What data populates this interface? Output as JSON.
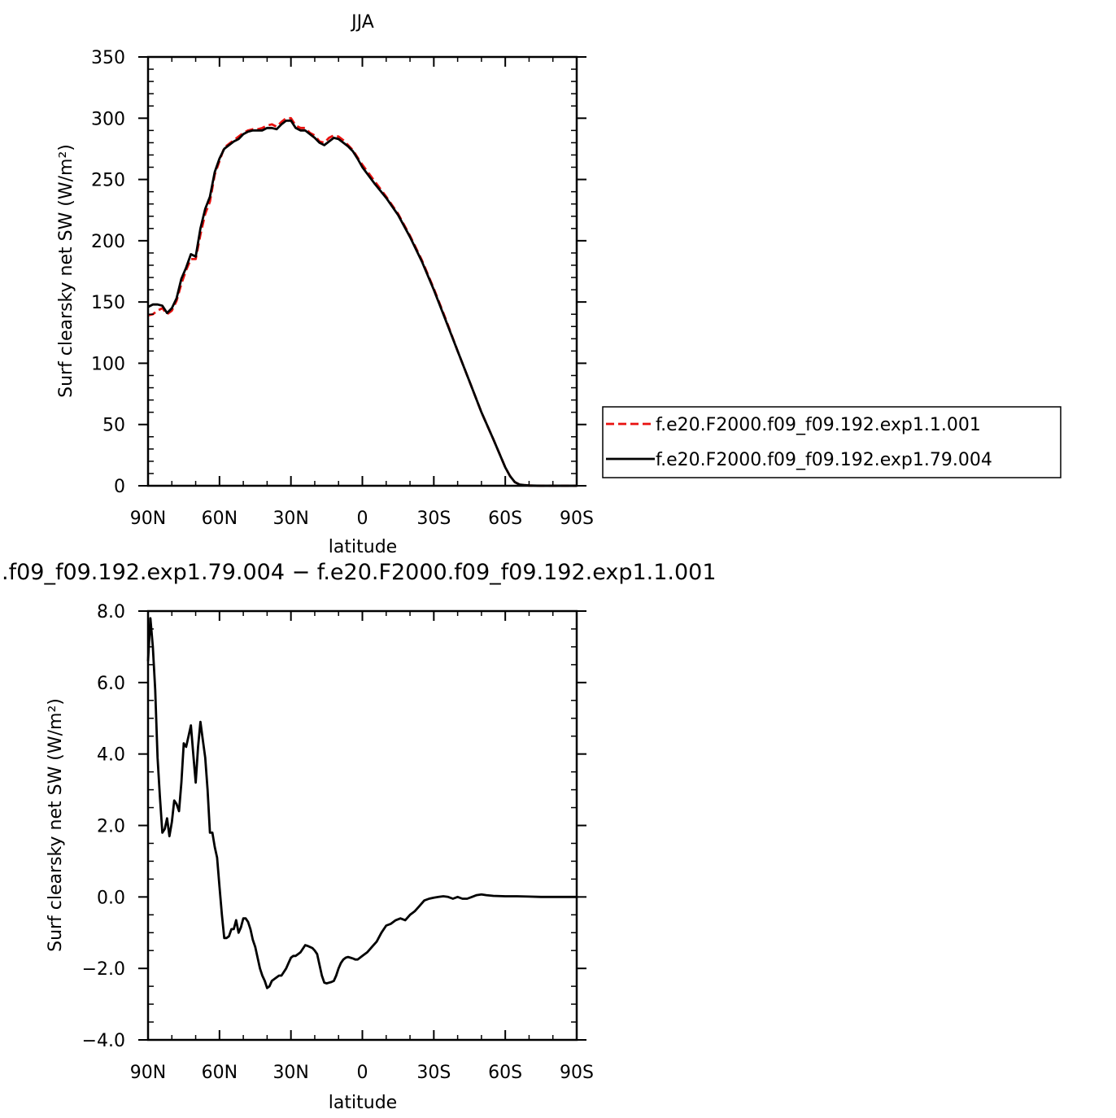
{
  "chart_data": [
    {
      "type": "line",
      "title": "JJA",
      "xlabel": "latitude",
      "ylabel": "Surf clearsky net SW (W/m²)",
      "xlim": [
        90,
        -90
      ],
      "ylim": [
        0,
        350
      ],
      "xticks": [
        90,
        60,
        30,
        0,
        -30,
        -60,
        -90
      ],
      "xtick_labels": [
        "90N",
        "60N",
        "30N",
        "0",
        "30S",
        "60S",
        "90S"
      ],
      "yticks": [
        0,
        50,
        100,
        150,
        200,
        250,
        300,
        350
      ],
      "ytick_labels": [
        "0",
        "50",
        "100",
        "150",
        "200",
        "250",
        "300",
        "350"
      ],
      "legend": "right",
      "series": [
        {
          "name": "f.e20.F2000.f09_f09.192.exp1.1.001",
          "color": "#e8110f",
          "dash": "dashed",
          "x": [
            90,
            88,
            86,
            84,
            82,
            80,
            78,
            76,
            74,
            72,
            70,
            68,
            66,
            64,
            62,
            60,
            58,
            56,
            54,
            52,
            50,
            48,
            46,
            44,
            42,
            40,
            38,
            36,
            34,
            32,
            30,
            28,
            26,
            24,
            22,
            20,
            18,
            16,
            14,
            12,
            10,
            8,
            6,
            4,
            2,
            0,
            -5,
            -10,
            -15,
            -20,
            -25,
            -30,
            -35,
            -40,
            -45,
            -50,
            -55,
            -60,
            -62,
            -64,
            -66,
            -68,
            -70,
            -75,
            -80,
            -85,
            -90
          ],
          "y": [
            139,
            140,
            143,
            145,
            140,
            143,
            151,
            165,
            176,
            185,
            185,
            205,
            222,
            232,
            254,
            265,
            276,
            279,
            282,
            285,
            288,
            290,
            291,
            291,
            292,
            294,
            295,
            293,
            297,
            300,
            300,
            294,
            292,
            292,
            288,
            286,
            281,
            280,
            284,
            286,
            285,
            282,
            278,
            274,
            268,
            262,
            249,
            236,
            222,
            204,
            184,
            161,
            136,
            110,
            85,
            60,
            38,
            15,
            8,
            3,
            1,
            0.5,
            0.2,
            0,
            0,
            0,
            0
          ]
        },
        {
          "name": "f.e20.F2000.f09_f09.192.exp1.79.004",
          "color": "#000000",
          "dash": "solid",
          "x": [
            90,
            88,
            86,
            84,
            82,
            80,
            78,
            76,
            74,
            72,
            70,
            68,
            66,
            64,
            62,
            60,
            58,
            56,
            54,
            52,
            50,
            48,
            46,
            44,
            42,
            40,
            38,
            36,
            34,
            32,
            30,
            28,
            26,
            24,
            22,
            20,
            18,
            16,
            14,
            12,
            10,
            8,
            6,
            4,
            2,
            0,
            -5,
            -10,
            -15,
            -20,
            -25,
            -30,
            -35,
            -40,
            -45,
            -50,
            -55,
            -60,
            -62,
            -64,
            -66,
            -68,
            -70,
            -75,
            -80,
            -85,
            -90
          ],
          "y": [
            146,
            148,
            148,
            147,
            141,
            145,
            153,
            169,
            178,
            189,
            187,
            210,
            226,
            236,
            256,
            267,
            275,
            278,
            281,
            283,
            287,
            289,
            290,
            290,
            290,
            292,
            292,
            291,
            295,
            298,
            298,
            292,
            290,
            290,
            287,
            284,
            280,
            278,
            281,
            284,
            283,
            280,
            277,
            273,
            267,
            260,
            247,
            235,
            221,
            203,
            183,
            160,
            135,
            110,
            85,
            60,
            38,
            15,
            8,
            3,
            1,
            0.5,
            0.2,
            0,
            0,
            0,
            0
          ]
        }
      ]
    },
    {
      "type": "line",
      "title": ".f09_f09.192.exp1.79.004 − f.e20.F2000.f09_f09.192.exp1.1.001",
      "xlabel": "latitude",
      "ylabel": "Surf clearsky net SW (W/m²)",
      "xlim": [
        90,
        -90
      ],
      "ylim": [
        -4,
        8
      ],
      "xticks": [
        90,
        60,
        30,
        0,
        -30,
        -60,
        -90
      ],
      "xtick_labels": [
        "90N",
        "60N",
        "30N",
        "0",
        "30S",
        "60S",
        "90S"
      ],
      "yticks": [
        -4,
        -2,
        0,
        2,
        4,
        6,
        8
      ],
      "ytick_labels": [
        "−4.0",
        "−2.0",
        "0.0",
        "2.0",
        "4.0",
        "6.0",
        "8.0"
      ],
      "series": [
        {
          "color": "#000000",
          "dash": "solid",
          "x": [
            90,
            89,
            88,
            87,
            86,
            85,
            84,
            83,
            82,
            81,
            80,
            79,
            78,
            77,
            76,
            75,
            74,
            73,
            72,
            71,
            70,
            69,
            68,
            67,
            66,
            65,
            64,
            63,
            62,
            61,
            60,
            59,
            58,
            57,
            56,
            55,
            54,
            53,
            52,
            51,
            50,
            49,
            48,
            47,
            46,
            45,
            44,
            43,
            42,
            41,
            40,
            39,
            38,
            37,
            36,
            35,
            34,
            33,
            32,
            31,
            30,
            29,
            28,
            27,
            26,
            25,
            24,
            23,
            22,
            21,
            20,
            19,
            18,
            17,
            16,
            15,
            14,
            13,
            12,
            11,
            10,
            9,
            8,
            7,
            6,
            5,
            4,
            3,
            2,
            1,
            0,
            -2,
            -4,
            -6,
            -8,
            -10,
            -12,
            -14,
            -16,
            -18,
            -20,
            -22,
            -24,
            -26,
            -28,
            -30,
            -32,
            -34,
            -36,
            -38,
            -40,
            -42,
            -44,
            -46,
            -48,
            -50,
            -52,
            -55,
            -60,
            -65,
            -70,
            -75,
            -80,
            -85,
            -90
          ],
          "y": [
            6.6,
            7.8,
            7.0,
            5.8,
            3.9,
            2.8,
            1.8,
            1.9,
            2.2,
            1.7,
            2.1,
            2.7,
            2.6,
            2.4,
            3.2,
            4.3,
            4.2,
            4.5,
            4.8,
            4.0,
            3.2,
            4.2,
            4.9,
            4.4,
            3.9,
            3.0,
            1.8,
            1.8,
            1.4,
            1.1,
            0.3,
            -0.5,
            -1.15,
            -1.15,
            -1.1,
            -0.9,
            -0.9,
            -0.65,
            -1.0,
            -0.85,
            -0.6,
            -0.6,
            -0.7,
            -0.9,
            -1.2,
            -1.4,
            -1.7,
            -2.0,
            -2.2,
            -2.35,
            -2.55,
            -2.5,
            -2.35,
            -2.3,
            -2.25,
            -2.2,
            -2.2,
            -2.1,
            -2.0,
            -1.85,
            -1.7,
            -1.65,
            -1.65,
            -1.6,
            -1.55,
            -1.45,
            -1.35,
            -1.37,
            -1.4,
            -1.43,
            -1.5,
            -1.6,
            -1.9,
            -2.2,
            -2.4,
            -2.42,
            -2.4,
            -2.38,
            -2.35,
            -2.2,
            -2.0,
            -1.85,
            -1.75,
            -1.7,
            -1.68,
            -1.7,
            -1.72,
            -1.75,
            -1.75,
            -1.7,
            -1.65,
            -1.55,
            -1.4,
            -1.25,
            -1.0,
            -0.8,
            -0.75,
            -0.65,
            -0.6,
            -0.65,
            -0.5,
            -0.4,
            -0.25,
            -0.1,
            -0.05,
            -0.02,
            0.0,
            0.02,
            0.0,
            -0.05,
            0.0,
            -0.05,
            -0.05,
            0.0,
            0.05,
            0.07,
            0.05,
            0.03,
            0.02,
            0.02,
            0.01,
            0.0,
            0.0,
            0.0,
            0.0
          ]
        }
      ]
    }
  ]
}
